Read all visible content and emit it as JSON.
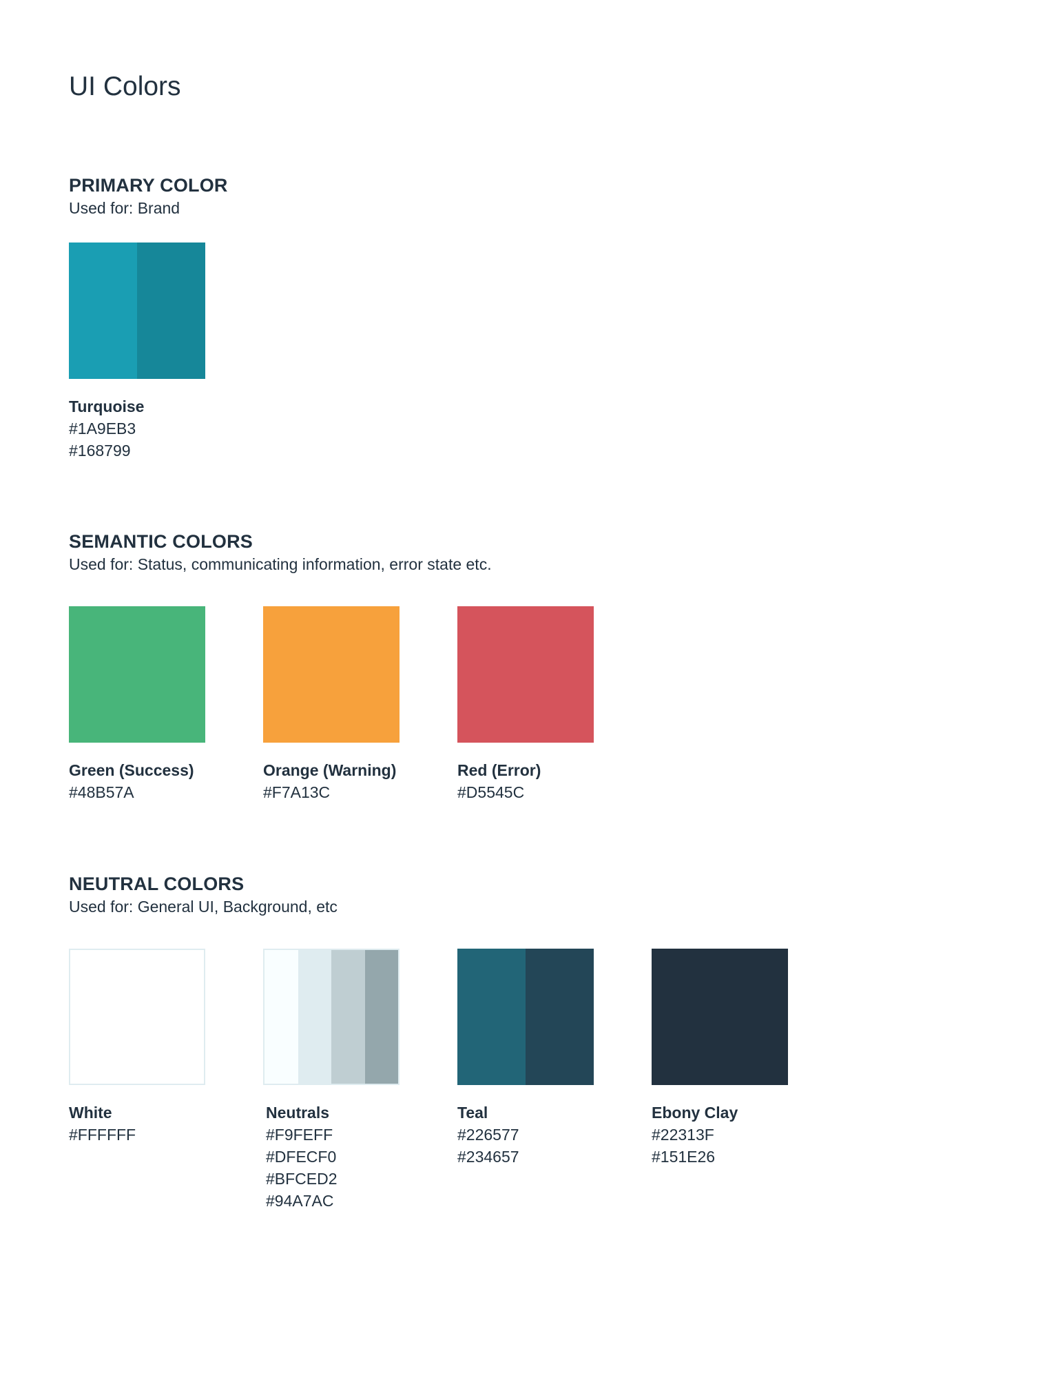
{
  "page": {
    "title": "UI Colors"
  },
  "primary": {
    "title": "PRIMARY COLOR",
    "description": "Used for: Brand",
    "swatches": [
      {
        "name": "Turquoise",
        "hex": [
          "#1A9EB3",
          "#168799"
        ]
      }
    ]
  },
  "semantic": {
    "title": "SEMANTIC COLORS",
    "description": "Used for: Status, communicating information, error state etc.",
    "swatches": [
      {
        "name": "Green (Success)",
        "hex": [
          "#48B57A"
        ]
      },
      {
        "name": "Orange (Warning)",
        "hex": [
          "#F7A13C"
        ]
      },
      {
        "name": "Red (Error)",
        "hex": [
          "#D5545C"
        ]
      }
    ]
  },
  "neutral": {
    "title": "NEUTRAL COLORS",
    "description": "Used for: General UI, Background, etc",
    "swatches": [
      {
        "name": "White",
        "hex": [
          "#FFFFFF"
        ]
      },
      {
        "name": "Neutrals",
        "hex": [
          "#F9FEFF",
          "#DFECF0",
          "#BFCED2",
          "#94A7AC"
        ]
      },
      {
        "name": "Teal",
        "hex": [
          "#226577",
          "#234657"
        ]
      },
      {
        "name": "Ebony Clay",
        "hex": [
          "#22313F",
          "#151E26"
        ]
      }
    ]
  },
  "colors": {
    "text": "#22313F",
    "swatch_border": "#DFECF0",
    "background": "#FFFFFF"
  }
}
